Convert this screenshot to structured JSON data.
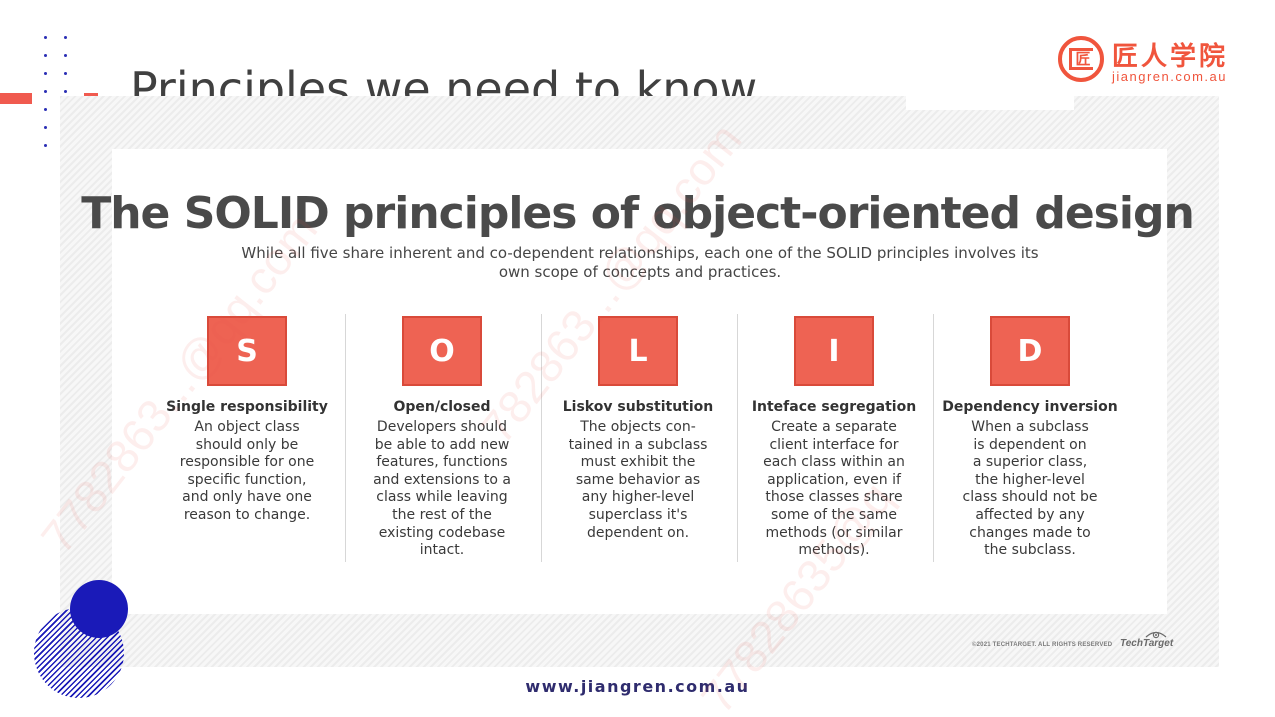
{
  "slide": {
    "title": "Principles we need to know"
  },
  "brand": {
    "logo_mark": "匠",
    "name_cn": "匠人学院",
    "url": "jiangren.com.au"
  },
  "infographic": {
    "heading": "The SOLID principles of object-oriented design",
    "subtitle": "While all five share inherent and co-dependent relationships, each one of the SOLID principles involves its own scope of concepts and practices.",
    "principles": [
      {
        "letter": "S",
        "name": "Single responsibility",
        "lines": [
          "An object class",
          "should only be",
          "responsible for one",
          "specific function,",
          "and only have one",
          "reason to change."
        ]
      },
      {
        "letter": "O",
        "name": "Open/closed",
        "lines": [
          "Developers should",
          "be able to add new",
          "features, functions",
          "and extensions to a",
          "class while leaving",
          "the rest of the",
          "existing codebase",
          "intact."
        ]
      },
      {
        "letter": "L",
        "name": "Liskov substitution",
        "lines": [
          "The objects con-",
          "tained in a subclass",
          "must exhibit the",
          "same behavior as",
          "any higher-level",
          "superclass it's",
          "dependent on."
        ]
      },
      {
        "letter": "I",
        "name": "Inteface segregation",
        "lines": [
          "Create a separate",
          "client interface for",
          "each class within an",
          "application, even if",
          "those classes share",
          "some of the same",
          "methods (or similar",
          "methods)."
        ]
      },
      {
        "letter": "D",
        "name": "Dependency inversion",
        "lines": [
          "When a subclass",
          "is dependent on",
          "a superior class,",
          "the higher-level",
          "class should not be",
          "affected by any",
          "changes made to",
          "the subclass."
        ]
      }
    ],
    "copyright": "©2021 TECHTARGET. ALL RIGHTS RESERVED",
    "publisher": "TechTarget"
  },
  "footer": {
    "url": "www.jiangren.com.au"
  },
  "watermarks": [
    "7782863...@qq.com",
    "782863...@qq.com",
    "77828635@q"
  ],
  "colors": {
    "accent_red": "#f05a4f",
    "principle_box": "#ee6353",
    "brand_orange": "#f0553d",
    "navy": "#2f2c6e",
    "decor_blue": "#1a1ab8"
  }
}
